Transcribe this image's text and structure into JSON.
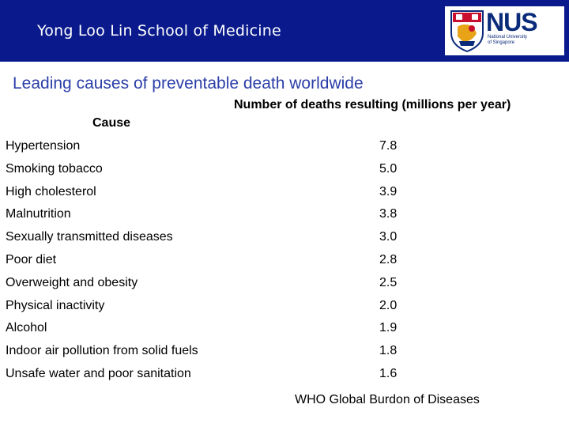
{
  "header": {
    "school_name": "Yong Loo Lin School of Medicine",
    "brand_color": "#0a1a8c",
    "logo": {
      "wordmark": "NUS",
      "subtitle_line1": "National University",
      "subtitle_line2": "of Singapore"
    }
  },
  "slide": {
    "title": "Leading causes of preventable death worldwide",
    "column_value_header": "Number of deaths resulting (millions per year)",
    "column_cause_header": "Cause",
    "rows": [
      {
        "cause": "Hypertension",
        "value": "7.8"
      },
      {
        "cause": "Smoking tobacco",
        "value": "5.0"
      },
      {
        "cause": "High cholesterol",
        "value": "3.9"
      },
      {
        "cause": "Malnutrition",
        "value": "3.8"
      },
      {
        "cause": "Sexually transmitted diseases",
        "value": "3.0"
      },
      {
        "cause": "Poor diet",
        "value": "2.8"
      },
      {
        "cause": "Overweight and obesity",
        "value": "2.5"
      },
      {
        "cause": "Physical inactivity",
        "value": "2.0"
      },
      {
        "cause": "Alcohol",
        "value": "1.9"
      },
      {
        "cause": "Indoor air pollution from solid fuels",
        "value": "1.8"
      },
      {
        "cause": "Unsafe water and poor sanitation",
        "value": "1.6"
      }
    ],
    "source": "WHO Global Burdon of Diseases"
  }
}
